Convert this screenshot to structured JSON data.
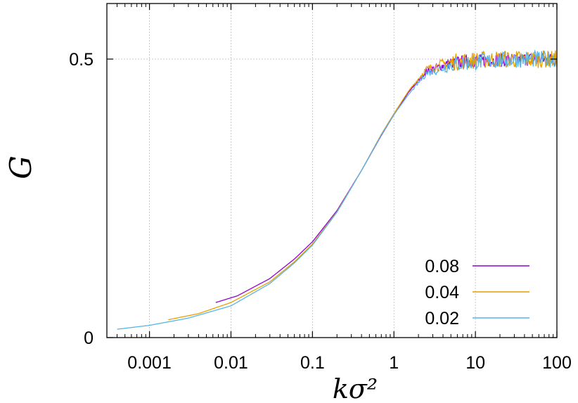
{
  "chart_data": {
    "type": "line",
    "title": "",
    "xlabel": "kσ²",
    "ylabel": "G",
    "x_scale": "log",
    "xlim": [
      0.0003,
      100
    ],
    "ylim": [
      0,
      0.5
    ],
    "x_ticks": [
      0.001,
      0.01,
      0.1,
      1,
      10,
      100
    ],
    "x_tick_labels": [
      "0.001",
      "0.01",
      "0.1",
      "1",
      "10",
      "100"
    ],
    "y_ticks": [
      0,
      0.5
    ],
    "y_tick_labels": [
      "0",
      "0.5"
    ],
    "grid": true,
    "legend_position": "bottom-right",
    "series": [
      {
        "name": "0.08",
        "color": "#9400d3",
        "noise": 0.012,
        "points": [
          [
            0.0065,
            0.063
          ],
          [
            0.012,
            0.075
          ],
          [
            0.03,
            0.106
          ],
          [
            0.06,
            0.141
          ],
          [
            0.1,
            0.172
          ],
          [
            0.2,
            0.228
          ],
          [
            0.4,
            0.3
          ],
          [
            0.7,
            0.363
          ],
          [
            1,
            0.4
          ],
          [
            1.5,
            0.44
          ],
          [
            2.5,
            0.478
          ],
          [
            5,
            0.493
          ],
          [
            10,
            0.497
          ],
          [
            20,
            0.498
          ],
          [
            50,
            0.5
          ],
          [
            100,
            0.5
          ]
        ]
      },
      {
        "name": "0.04",
        "color": "#e69f00",
        "noise": 0.016,
        "points": [
          [
            0.0017,
            0.032
          ],
          [
            0.004,
            0.043
          ],
          [
            0.01,
            0.063
          ],
          [
            0.03,
            0.1
          ],
          [
            0.06,
            0.136
          ],
          [
            0.1,
            0.168
          ],
          [
            0.2,
            0.226
          ],
          [
            0.4,
            0.3
          ],
          [
            0.7,
            0.365
          ],
          [
            1,
            0.402
          ],
          [
            1.5,
            0.442
          ],
          [
            2.5,
            0.482
          ],
          [
            5,
            0.494
          ],
          [
            10,
            0.498
          ],
          [
            20,
            0.5
          ],
          [
            50,
            0.5
          ],
          [
            100,
            0.5
          ]
        ]
      },
      {
        "name": "0.02",
        "color": "#56b4e9",
        "noise": 0.015,
        "points": [
          [
            0.0004,
            0.015
          ],
          [
            0.001,
            0.022
          ],
          [
            0.003,
            0.035
          ],
          [
            0.01,
            0.057
          ],
          [
            0.03,
            0.097
          ],
          [
            0.06,
            0.134
          ],
          [
            0.1,
            0.166
          ],
          [
            0.2,
            0.225
          ],
          [
            0.4,
            0.3
          ],
          [
            0.7,
            0.364
          ],
          [
            1,
            0.4
          ],
          [
            1.5,
            0.436
          ],
          [
            2.5,
            0.474
          ],
          [
            5,
            0.49
          ],
          [
            10,
            0.495
          ],
          [
            20,
            0.498
          ],
          [
            50,
            0.5
          ],
          [
            100,
            0.5
          ]
        ]
      }
    ]
  }
}
